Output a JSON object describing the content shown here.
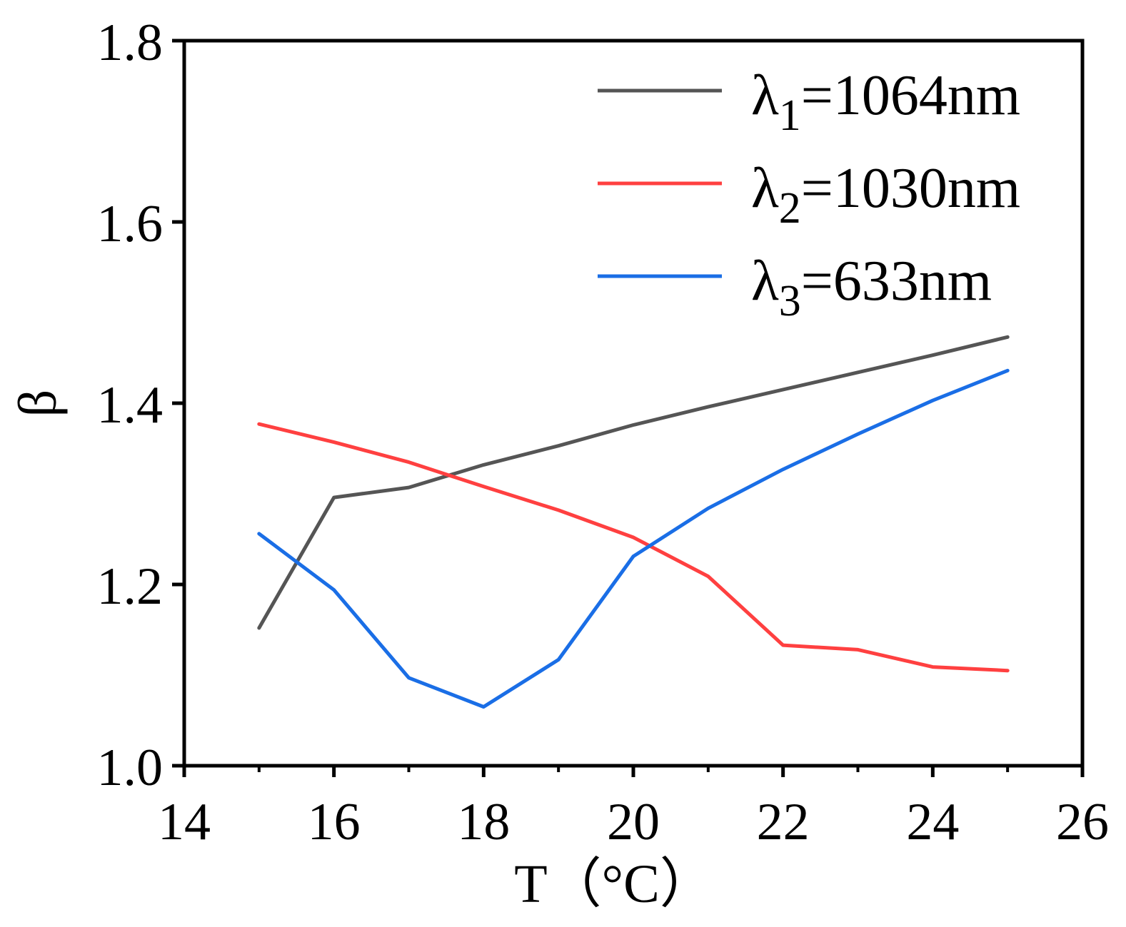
{
  "chart_data": {
    "type": "line",
    "title": "",
    "xlabel": "T（℃）",
    "xlabel_main": "T",
    "xlabel_unit": "（°C）",
    "ylabel": "β",
    "xlim": [
      14,
      26
    ],
    "ylim": [
      1.0,
      1.8
    ],
    "xticks": [
      14,
      16,
      18,
      20,
      22,
      24,
      26
    ],
    "xtick_labels": [
      "14",
      "16",
      "18",
      "20",
      "22",
      "24",
      "26"
    ],
    "x_minor_ticks": [
      15,
      17,
      19,
      21,
      23,
      25
    ],
    "yticks": [
      1.0,
      1.2,
      1.4,
      1.6,
      1.8
    ],
    "ytick_labels": [
      "1.0",
      "1.2",
      "1.4",
      "1.6",
      "1.8"
    ],
    "grid": false,
    "legend_position": "top-right",
    "x": [
      15,
      16,
      17,
      18,
      19,
      20,
      21,
      22,
      23,
      24,
      25
    ],
    "series": [
      {
        "name": "λ1=1064nm",
        "symbol": "λ",
        "subscript": "1",
        "suffix": "=1064nm",
        "color": "#555555",
        "values": [
          1.152,
          1.296,
          1.307,
          1.332,
          1.353,
          1.376,
          1.396,
          1.415,
          1.434,
          1.453,
          1.473
        ]
      },
      {
        "name": "λ2=1030nm",
        "symbol": "λ",
        "subscript": "2",
        "suffix": "=1030nm",
        "color": "#ff4040",
        "values": [
          1.377,
          1.357,
          1.335,
          1.308,
          1.282,
          1.252,
          1.209,
          1.133,
          1.128,
          1.109,
          1.105
        ]
      },
      {
        "name": "λ3=633nm",
        "symbol": "λ",
        "subscript": "3",
        "suffix": "=633nm",
        "color": "#1a6ee6",
        "values": [
          1.256,
          1.194,
          1.097,
          1.065,
          1.117,
          1.231,
          1.284,
          1.327,
          1.366,
          1.403,
          1.436
        ]
      }
    ]
  }
}
